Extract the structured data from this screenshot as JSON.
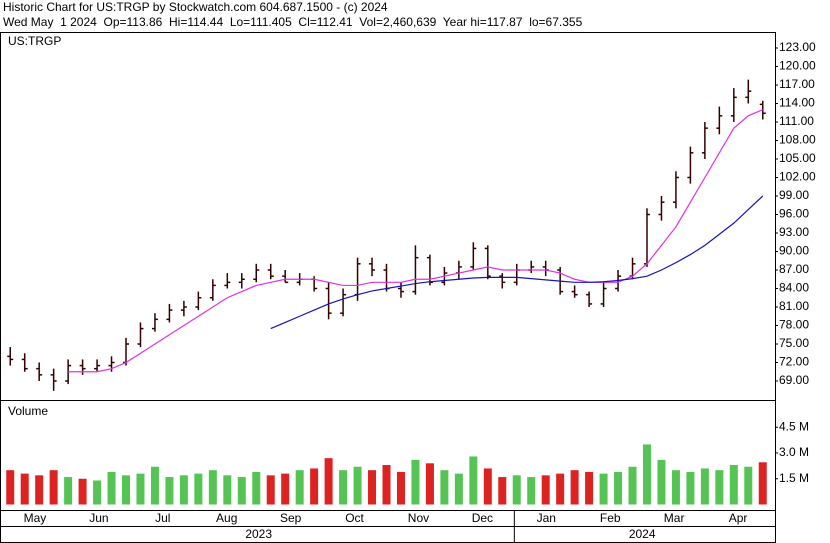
{
  "chart_data": [
    {
      "type": "ohlc",
      "title": "Historic Chart for US:TRGP by Stockwatch.com 604.687.1500 - (c) 2024",
      "subtitle": "Wed May  1 2024  Op=113.86  Hi=114.44  Lo=111.405  Cl=112.41  Vol=2,460,639  Year hi=117.87  lo=67.355",
      "label": "US:TRGP",
      "color": "#330000",
      "open": [
        73,
        72.5,
        71,
        70,
        69,
        71.5,
        71,
        71.5,
        72,
        75,
        77.5,
        79,
        80.5,
        81,
        82.5,
        84.5,
        85,
        85.5,
        87,
        86,
        85,
        85.5,
        84,
        80,
        83,
        88,
        87,
        84,
        83.5,
        89,
        85,
        86.5,
        87.5,
        90.5,
        86,
        85,
        87,
        87.5,
        87,
        83.5,
        83,
        81.5,
        84,
        86,
        88,
        96,
        98,
        102,
        106,
        110,
        112,
        115,
        113.86
      ],
      "high": [
        74.5,
        73.5,
        72,
        71,
        72.5,
        72.5,
        72.5,
        73,
        76,
        78.5,
        80,
        81.5,
        82,
        83.5,
        85.5,
        86.5,
        86.5,
        88,
        88,
        87,
        86.5,
        86,
        85,
        84,
        89,
        89,
        88,
        85,
        91,
        89.5,
        87.5,
        88.5,
        91.5,
        91,
        86.5,
        88,
        88.5,
        88.5,
        87.5,
        84.5,
        83.5,
        85,
        87,
        89,
        97,
        99,
        103,
        107,
        111,
        113.5,
        116.5,
        117.87,
        114.44
      ],
      "low": [
        71.5,
        70.5,
        69,
        67.4,
        68.5,
        70,
        70.5,
        70.5,
        71.5,
        74.5,
        77,
        78.5,
        79.5,
        80.5,
        82,
        84,
        84,
        85,
        85.5,
        85,
        84.5,
        83.5,
        79,
        79.5,
        82,
        86,
        83.5,
        82.5,
        83,
        84.5,
        84.5,
        85.5,
        87,
        85.5,
        84,
        84.5,
        86.5,
        86,
        83,
        82.5,
        81,
        81,
        83.5,
        85.5,
        87.5,
        95,
        97,
        101,
        105,
        109,
        111,
        114,
        111.405
      ],
      "close": [
        72.5,
        71,
        70,
        69,
        71.5,
        71,
        71.5,
        72,
        75,
        77.5,
        79,
        80.5,
        81,
        82.5,
        84.5,
        85,
        85.5,
        87,
        86,
        85,
        85.5,
        84,
        80,
        83,
        88,
        87,
        84,
        83.5,
        89,
        85,
        86.5,
        87.5,
        90.5,
        86,
        85,
        87,
        87.5,
        87,
        83.5,
        83,
        81.5,
        84,
        86,
        88,
        96,
        98,
        102,
        106,
        110,
        112,
        115,
        116,
        112.41
      ],
      "series": [
        {
          "color": "#e030e0",
          "values": [
            null,
            null,
            null,
            null,
            70.5,
            70.5,
            70.5,
            71,
            72,
            73.5,
            75,
            76.5,
            78,
            79.5,
            81,
            82.5,
            83.5,
            84.5,
            85,
            85.5,
            85.5,
            85.5,
            85,
            84.5,
            84.5,
            85,
            85,
            85,
            85.5,
            85.5,
            86,
            86.5,
            87,
            87.5,
            87,
            87,
            87,
            87,
            86.5,
            85.5,
            85,
            85,
            85,
            86,
            88,
            91,
            94,
            98,
            102,
            106,
            110,
            112,
            113
          ]
        },
        {
          "color": "#1515b5",
          "values": [
            null,
            null,
            null,
            null,
            null,
            null,
            null,
            null,
            null,
            null,
            null,
            null,
            null,
            null,
            null,
            null,
            null,
            null,
            77.5,
            78.5,
            79.5,
            80.5,
            81.5,
            82.3,
            83,
            83.6,
            84,
            84.4,
            84.8,
            85.1,
            85.3,
            85.5,
            85.7,
            85.8,
            85.8,
            85.8,
            85.6,
            85.4,
            85.2,
            85,
            85,
            85.1,
            85.3,
            85.6,
            86,
            87,
            88.2,
            89.5,
            91,
            92.8,
            94.6,
            96.8,
            99
          ]
        }
      ],
      "ylim": [
        65.92,
        125.43
      ],
      "yticks": [
        {
          "value": 69,
          "label": "69.00"
        },
        {
          "value": 72,
          "label": "72.00"
        },
        {
          "value": 75,
          "label": "75.00"
        },
        {
          "value": 78,
          "label": "78.00"
        },
        {
          "value": 81,
          "label": "81.00"
        },
        {
          "value": 84,
          "label": "84.00"
        },
        {
          "value": 87,
          "label": "87.00"
        },
        {
          "value": 90,
          "label": "90.00"
        },
        {
          "value": 93,
          "label": "93.00"
        },
        {
          "value": 96,
          "label": "96.00"
        },
        {
          "value": 99,
          "label": "99.00"
        },
        {
          "value": 102,
          "label": "102.00"
        },
        {
          "value": 105,
          "label": "105.00"
        },
        {
          "value": 108,
          "label": "108.00"
        },
        {
          "value": 111,
          "label": "111.00"
        },
        {
          "value": 114,
          "label": "114.00"
        },
        {
          "value": 117,
          "label": "117.00"
        },
        {
          "value": 120,
          "label": "120.00"
        },
        {
          "value": 123,
          "label": "123.00"
        }
      ]
    },
    {
      "type": "bar",
      "label": "Volume",
      "up_color": "#55c455",
      "down_color": "#dd2222",
      "values": [
        2000000,
        1800000,
        1700000,
        2000000,
        1600000,
        1500000,
        1400000,
        1900000,
        1700000,
        1800000,
        2200000,
        1600000,
        1700000,
        1800000,
        2000000,
        1700000,
        1600000,
        1900000,
        1700000,
        1800000,
        2000000,
        2100000,
        2700000,
        2000000,
        2200000,
        2000000,
        2300000,
        1900000,
        2600000,
        2400000,
        2000000,
        1800000,
        2800000,
        2100000,
        1600000,
        1700000,
        1600000,
        1700000,
        1800000,
        2000000,
        1900000,
        1800000,
        1900000,
        2200000,
        3500000,
        2600000,
        2000000,
        1900000,
        2100000,
        2000000,
        2300000,
        2200000,
        2460639
      ],
      "ylim": [
        -320000,
        6030000
      ],
      "yticks": [
        {
          "value": 1500000,
          "label": "1.5 M"
        },
        {
          "value": 3000000,
          "label": "3.0 M"
        },
        {
          "value": 4500000,
          "label": "4.5 M"
        }
      ],
      "months": [
        "May",
        "Jun",
        "Jul",
        "Aug",
        "Sep",
        "Oct",
        "Nov",
        "Dec",
        "Jan",
        "Feb",
        "Mar",
        "Apr"
      ],
      "years": [
        "2023",
        "2024"
      ]
    }
  ]
}
